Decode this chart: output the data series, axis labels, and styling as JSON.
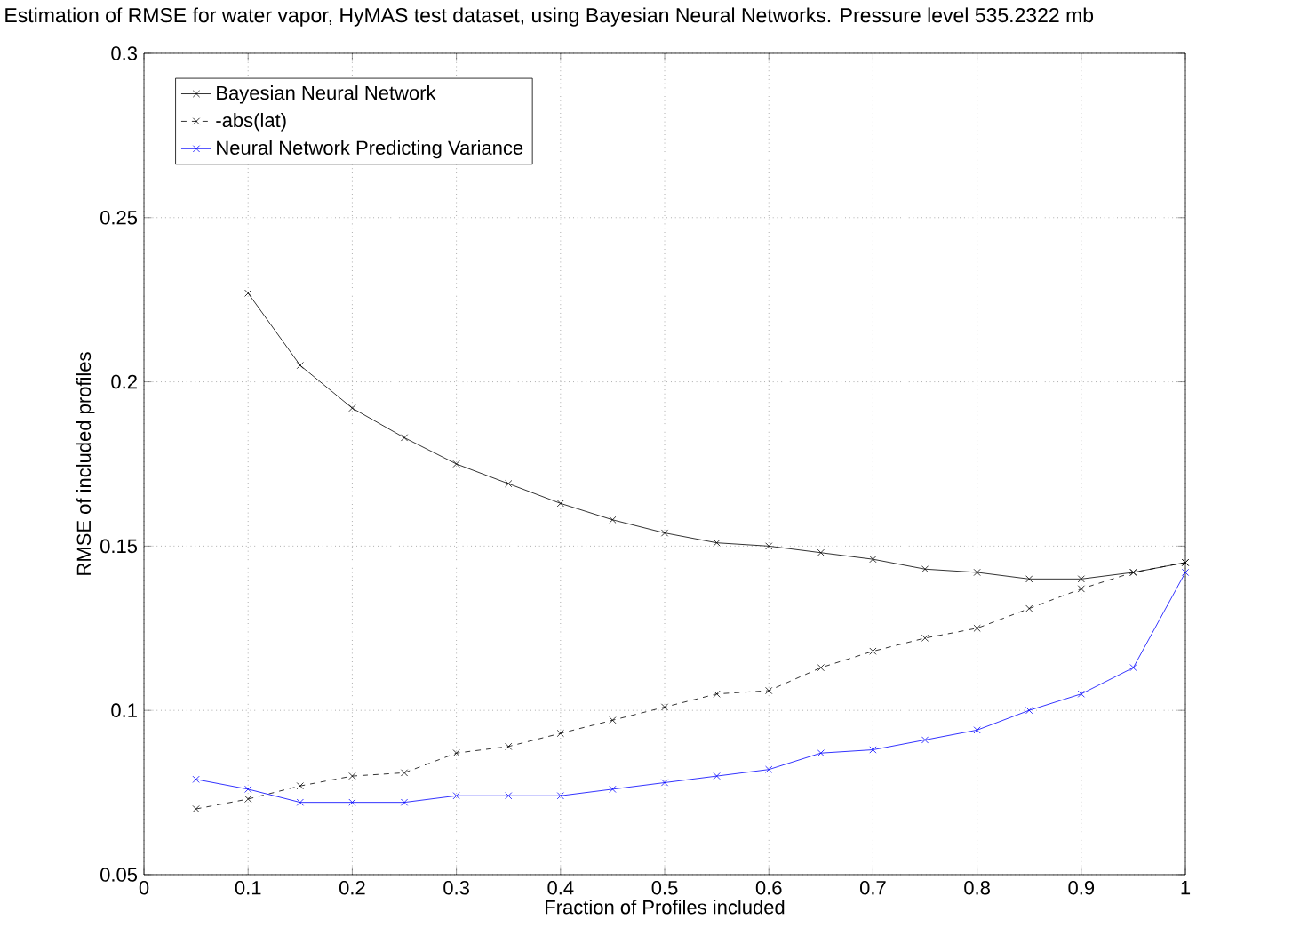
{
  "chart_data": {
    "type": "line",
    "title": "Estimation of RMSE for water vapor, HyMAS test dataset, using Bayesian Neural Networks. Pressure level 535.2322 mb",
    "xlabel": "Fraction of Profiles included",
    "ylabel": "RMSE of included profiles",
    "x": [
      0.05,
      0.1,
      0.15,
      0.2,
      0.25,
      0.3,
      0.35,
      0.4,
      0.45,
      0.5,
      0.55,
      0.6,
      0.65,
      0.7,
      0.75,
      0.8,
      0.85,
      0.9,
      0.95,
      1
    ],
    "series": [
      {
        "name": "Bayesian Neural Network",
        "color": "#000000",
        "line_style": "solid",
        "values": [
          null,
          0.227,
          0.205,
          0.192,
          0.183,
          0.175,
          0.169,
          0.163,
          0.158,
          0.154,
          0.151,
          0.15,
          0.148,
          0.146,
          0.143,
          0.142,
          0.14,
          0.14,
          0.142,
          0.145
        ]
      },
      {
        "name": "-abs(lat)",
        "color": "#000000",
        "line_style": "dashed",
        "values": [
          0.07,
          0.073,
          0.077,
          0.08,
          0.081,
          0.087,
          0.089,
          0.093,
          0.097,
          0.101,
          0.105,
          0.106,
          0.113,
          0.118,
          0.122,
          0.125,
          0.131,
          0.137,
          0.142,
          0.145
        ]
      },
      {
        "name": "Neural Network Predicting Variance",
        "color": "#0000ff",
        "line_style": "solid",
        "values": [
          0.079,
          0.076,
          0.072,
          0.072,
          0.072,
          0.074,
          0.074,
          0.074,
          0.076,
          0.078,
          0.08,
          0.082,
          0.087,
          0.088,
          0.091,
          0.094,
          0.1,
          0.105,
          0.113,
          0.142
        ]
      }
    ],
    "xlim": [
      0,
      1
    ],
    "xticks": [
      0,
      0.1,
      0.2,
      0.3,
      0.4,
      0.5,
      0.6,
      0.7,
      0.8,
      0.9,
      1
    ],
    "ylim": [
      0.05,
      0.3
    ],
    "yticks": [
      0.05,
      0.1,
      0.15,
      0.2,
      0.25,
      0.3
    ],
    "grid": true,
    "legend": "top left",
    "marker": "cross"
  }
}
